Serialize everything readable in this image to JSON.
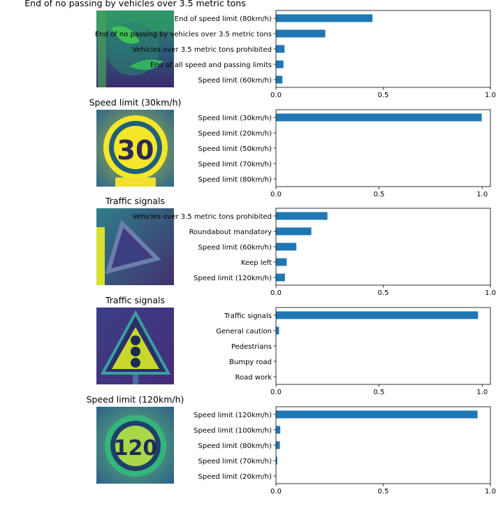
{
  "colors": {
    "bar": "#1f77b4",
    "axis": "#000000"
  },
  "chart_data": [
    {
      "type": "bar",
      "orientation": "horizontal",
      "title": "End of no passing by vehicles over 3.5 metric tons",
      "image_icon": "traffic-sign-end-no-passing-heavy-icon",
      "categories": [
        "End of speed limit (80km/h)",
        "End of no passing by vehicles over 3.5 metric tons",
        "Vehicles over 3.5 metric tons prohibited",
        "End of all speed and passing limits",
        "Speed limit (60km/h)"
      ],
      "values": [
        0.45,
        0.23,
        0.04,
        0.035,
        0.03
      ],
      "xlim": [
        0,
        1
      ],
      "xticks": [
        "0.0",
        "0.5",
        "1.0"
      ],
      "grid": false
    },
    {
      "type": "bar",
      "orientation": "horizontal",
      "title": "Speed limit (30km/h)",
      "image_icon": "traffic-sign-speed-30-icon",
      "categories": [
        "Speed limit (30km/h)",
        "Speed limit (20km/h)",
        "Speed limit (50km/h)",
        "Speed limit (70km/h)",
        "Speed limit (80km/h)"
      ],
      "values": [
        0.998,
        0.0005,
        0.0005,
        0.0003,
        0.0002
      ],
      "xlim": [
        0,
        1.04
      ],
      "xticks": [
        "0.0",
        "0.5",
        "1.0"
      ],
      "grid": false
    },
    {
      "type": "bar",
      "orientation": "horizontal",
      "title": "Traffic signals",
      "image_icon": "traffic-sign-warning-triangle-icon",
      "categories": [
        "Vehicles over 3.5 metric tons prohibited",
        "Roundabout mandatory",
        "Speed limit (60km/h)",
        "Keep left",
        "Speed limit (120km/h)"
      ],
      "values": [
        0.24,
        0.165,
        0.095,
        0.05,
        0.042
      ],
      "xlim": [
        0,
        1
      ],
      "xticks": [
        "0.0",
        "0.5",
        "1.0"
      ],
      "grid": false
    },
    {
      "type": "bar",
      "orientation": "horizontal",
      "title": "Traffic signals",
      "image_icon": "traffic-sign-traffic-signals-icon",
      "categories": [
        "Traffic signals",
        "General caution",
        "Pedestrians",
        "Bumpy road",
        "Road work"
      ],
      "values": [
        0.98,
        0.015,
        0.001,
        0.0005,
        0.0003
      ],
      "xlim": [
        0,
        1.04
      ],
      "xticks": [
        "0.0",
        "0.5",
        "1.0"
      ],
      "grid": false
    },
    {
      "type": "bar",
      "orientation": "horizontal",
      "title": "Speed limit (120km/h)",
      "image_icon": "traffic-sign-speed-120-icon",
      "categories": [
        "Speed limit (120km/h)",
        "Speed limit (100km/h)",
        "Speed limit (80km/h)",
        "Speed limit (70km/h)",
        "Speed limit (20km/h)"
      ],
      "values": [
        0.94,
        0.02,
        0.018,
        0.006,
        0.001
      ],
      "xlim": [
        0,
        1
      ],
      "xticks": [
        "0.0",
        "0.5",
        "1.0"
      ],
      "grid": false
    }
  ]
}
